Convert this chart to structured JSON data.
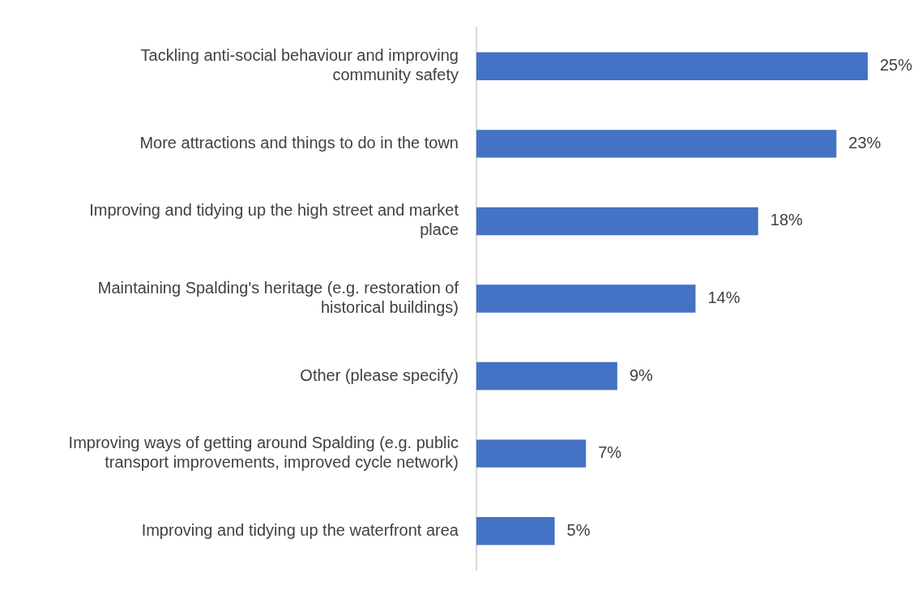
{
  "chart_data": {
    "type": "bar",
    "orientation": "horizontal",
    "categories": [
      "Tackling anti-social behaviour and improving community safety",
      "More attractions and things to do in the town",
      "Improving and tidying up the high street and market place",
      "Maintaining Spalding's heritage (e.g. restoration of historical buildings)",
      "Other (please specify)",
      "Improving ways of getting around Spalding (e.g. public transport improvements, improved cycle network)",
      "Improving and tidying up the waterfront area"
    ],
    "values": [
      25,
      23,
      18,
      14,
      9,
      7,
      5
    ],
    "value_labels": [
      "25%",
      "23%",
      "18%",
      "14%",
      "9%",
      "7%",
      "5%"
    ],
    "color": "#4472c4",
    "tick_labels": "y",
    "legend": false
  }
}
